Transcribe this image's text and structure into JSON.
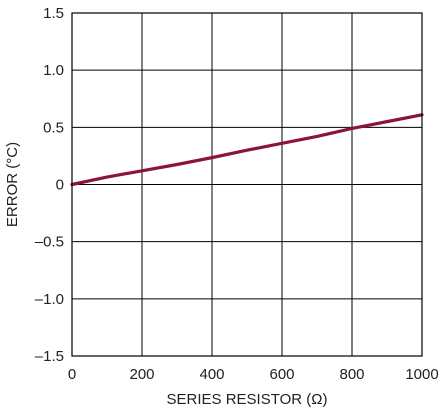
{
  "chart_data": {
    "type": "line",
    "title": "",
    "xlabel": "SERIES RESISTOR (Ω)",
    "ylabel": "ERROR (°C)",
    "xlim": [
      0,
      1000
    ],
    "ylim": [
      -1.5,
      1.5
    ],
    "x_ticks": [
      0,
      200,
      400,
      600,
      800,
      1000
    ],
    "x_tick_labels": [
      "0",
      "200",
      "400",
      "600",
      "800",
      "1000"
    ],
    "y_ticks": [
      -1.5,
      -1.0,
      -0.5,
      0,
      0.5,
      1.0,
      1.5
    ],
    "y_tick_labels": [
      "–1.5",
      "–1.0",
      "–0.5",
      "0",
      "0.5",
      "1.0",
      "1.5"
    ],
    "grid": true,
    "series": [
      {
        "color": "#8a1538",
        "x": [
          0,
          100,
          200,
          300,
          400,
          500,
          600,
          700,
          800,
          900,
          1000
        ],
        "y": [
          0,
          0.065,
          0.12,
          0.175,
          0.235,
          0.3,
          0.36,
          0.42,
          0.49,
          0.55,
          0.61
        ]
      }
    ]
  }
}
